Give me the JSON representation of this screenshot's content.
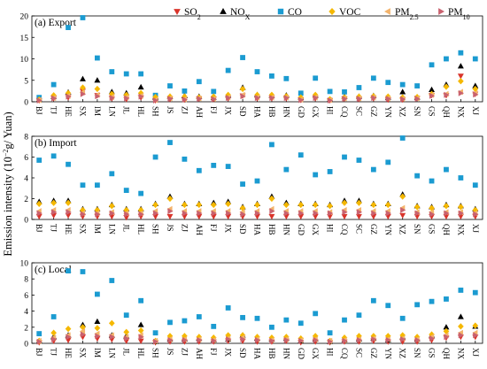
{
  "chart_data": {
    "type": "scatter",
    "ylabel": "Emission intensity (10",
    "ylabel_exp": "−2",
    "ylabel_tail": "g/ Yuan)",
    "categories": [
      "BJ",
      "TJ",
      "HE",
      "SX",
      "IM",
      "LN",
      "JL",
      "HL",
      "SH",
      "JS",
      "ZJ",
      "AH",
      "FJ",
      "JX",
      "SD",
      "HA",
      "HB",
      "HN",
      "GD",
      "GX",
      "HI",
      "CQ",
      "SC",
      "GZ",
      "YN",
      "XZ",
      "SN",
      "GS",
      "QH",
      "NX",
      "XJ"
    ],
    "series_style": [
      {
        "key": "SO2",
        "name": "SO",
        "sub": "2",
        "color": "#d9342b",
        "shape": "tri-down"
      },
      {
        "key": "NOX",
        "name": "NO",
        "sub": "X",
        "color": "#000000",
        "shape": "tri-up"
      },
      {
        "key": "CO",
        "name": "CO",
        "sub": "",
        "color": "#1b9bd1",
        "shape": "square"
      },
      {
        "key": "VOC",
        "name": "VOC",
        "sub": "",
        "color": "#f5b800",
        "shape": "diamond"
      },
      {
        "key": "PM25",
        "name": "PM",
        "sub": "2.5",
        "color": "#f3b36b",
        "shape": "tri-left"
      },
      {
        "key": "PM10",
        "name": "PM",
        "sub": "10",
        "color": "#c9626f",
        "shape": "tri-right"
      }
    ],
    "legend_position": "top-right",
    "panels": [
      {
        "title": "(a) Export",
        "ylim": [
          0,
          20
        ],
        "yticks": [
          0,
          5,
          10,
          15,
          20
        ],
        "series": {
          "SO2": [
            0.3,
            0.8,
            1.0,
            2.5,
            1.5,
            0.8,
            0.6,
            1.0,
            0.3,
            0.6,
            0.5,
            0.7,
            0.6,
            0.8,
            1.4,
            0.8,
            0.8,
            0.8,
            0.4,
            0.8,
            0.3,
            0.7,
            0.6,
            0.8,
            0.5,
            0.5,
            0.8,
            1.5,
            1.5,
            6.0,
            1.8
          ],
          "NOX": [
            0.5,
            1.2,
            2.2,
            5.3,
            5.0,
            2.3,
            2.0,
            3.4,
            1.0,
            1.2,
            1.4,
            1.2,
            1.0,
            1.5,
            3.3,
            1.6,
            1.4,
            1.5,
            1.0,
            1.5,
            0.5,
            1.2,
            1.2,
            1.4,
            1.0,
            2.3,
            1.0,
            2.8,
            4.0,
            8.3,
            3.7
          ],
          "CO": [
            1.0,
            4.0,
            17.3,
            20.2,
            10.2,
            7.0,
            6.5,
            6.5,
            1.5,
            3.7,
            2.5,
            4.7,
            2.4,
            7.3,
            10.3,
            7.0,
            6.0,
            5.4,
            2.0,
            5.5,
            2.4,
            2.3,
            3.3,
            5.5,
            4.5,
            4.0,
            3.7,
            8.6,
            10.0,
            11.4,
            10.0
          ],
          "VOC": [
            0.5,
            1.5,
            2.0,
            3.3,
            3.0,
            1.8,
            1.6,
            2.0,
            1.1,
            1.2,
            1.2,
            1.0,
            1.2,
            1.6,
            3.0,
            1.6,
            1.6,
            1.3,
            1.0,
            1.6,
            0.6,
            1.0,
            1.2,
            1.3,
            1.2,
            1.0,
            1.1,
            1.8,
            3.5,
            4.8,
            3.0
          ],
          "PM25": [
            0.4,
            0.9,
            1.4,
            2.2,
            1.6,
            1.1,
            1.0,
            1.4,
            0.4,
            0.8,
            0.6,
            0.8,
            0.7,
            1.0,
            1.6,
            1.0,
            1.0,
            1.0,
            0.5,
            1.0,
            0.4,
            0.8,
            0.8,
            1.0,
            0.8,
            0.7,
            0.8,
            1.6,
            1.8,
            2.3,
            2.0
          ],
          "PM10": [
            0.3,
            0.8,
            1.2,
            1.8,
            1.3,
            0.9,
            0.8,
            1.2,
            0.3,
            0.7,
            0.5,
            0.7,
            0.6,
            0.9,
            1.3,
            0.9,
            0.9,
            0.9,
            0.4,
            0.9,
            0.3,
            0.7,
            0.7,
            0.9,
            0.7,
            0.6,
            0.7,
            1.4,
            1.6,
            2.0,
            1.7
          ]
        }
      },
      {
        "title": "(b) Import",
        "ylim": [
          0,
          8
        ],
        "yticks": [
          0,
          2,
          4,
          6,
          8
        ],
        "series": {
          "SO2": [
            0.3,
            0.4,
            0.4,
            0.3,
            0.3,
            0.3,
            0.2,
            0.3,
            0.3,
            0.3,
            0.3,
            0.3,
            0.3,
            0.3,
            0.3,
            0.3,
            0.3,
            0.3,
            0.3,
            0.3,
            0.3,
            0.3,
            0.3,
            0.3,
            0.3,
            0.4,
            0.3,
            0.3,
            0.3,
            0.3,
            0.3
          ],
          "NOX": [
            1.7,
            1.8,
            1.8,
            1.0,
            1.0,
            1.4,
            1.0,
            1.0,
            1.5,
            2.2,
            1.5,
            1.5,
            1.6,
            1.7,
            1.2,
            1.5,
            2.2,
            1.6,
            1.5,
            1.5,
            1.4,
            1.8,
            1.8,
            1.5,
            1.5,
            2.4,
            1.3,
            1.2,
            1.4,
            1.3,
            1.0
          ],
          "CO": [
            5.7,
            6.1,
            5.3,
            3.3,
            3.3,
            4.4,
            2.8,
            2.5,
            6.0,
            7.4,
            5.8,
            4.7,
            5.2,
            5.1,
            3.4,
            3.7,
            7.2,
            4.8,
            6.2,
            4.3,
            4.6,
            6.0,
            5.7,
            4.8,
            5.5,
            8.0,
            4.2,
            3.7,
            4.8,
            4.0,
            3.3
          ],
          "VOC": [
            1.5,
            1.6,
            1.6,
            0.9,
            0.9,
            1.3,
            0.9,
            0.9,
            1.4,
            2.0,
            1.4,
            1.4,
            1.4,
            1.5,
            1.1,
            1.4,
            2.0,
            1.4,
            1.4,
            1.4,
            1.3,
            1.6,
            1.6,
            1.4,
            1.4,
            2.2,
            1.2,
            1.1,
            1.3,
            1.2,
            0.9
          ],
          "PM25": [
            0.8,
            0.9,
            0.9,
            0.6,
            0.6,
            0.7,
            0.6,
            0.6,
            0.8,
            1.0,
            0.8,
            0.8,
            0.8,
            0.8,
            0.7,
            0.8,
            1.0,
            0.8,
            0.8,
            0.8,
            0.7,
            0.9,
            0.9,
            0.8,
            0.8,
            1.1,
            0.7,
            0.7,
            0.7,
            0.7,
            0.6
          ],
          "PM10": [
            0.6,
            0.7,
            0.7,
            0.5,
            0.5,
            0.6,
            0.5,
            0.5,
            0.6,
            0.8,
            0.6,
            0.6,
            0.6,
            0.6,
            0.5,
            0.6,
            0.8,
            0.6,
            0.6,
            0.6,
            0.6,
            0.7,
            0.7,
            0.6,
            0.6,
            0.9,
            0.6,
            0.5,
            0.6,
            0.6,
            0.5
          ]
        }
      },
      {
        "title": "(c) Local",
        "ylim": [
          0,
          10
        ],
        "yticks": [
          0,
          2,
          4,
          6,
          8,
          10
        ],
        "series": {
          "SO2": [
            0.1,
            0.3,
            0.4,
            0.8,
            0.6,
            0.5,
            0.3,
            0.3,
            0.1,
            0.2,
            0.2,
            0.2,
            0.2,
            0.3,
            0.3,
            0.2,
            0.2,
            0.3,
            0.1,
            0.2,
            0.1,
            0.2,
            0.2,
            0.3,
            0.2,
            0.2,
            0.2,
            0.4,
            0.7,
            0.8,
            0.8
          ],
          "NOX": [
            0.3,
            0.8,
            1.0,
            2.3,
            2.7,
            1.0,
            0.9,
            2.3,
            0.2,
            0.5,
            0.5,
            0.6,
            0.4,
            0.5,
            1.0,
            0.6,
            0.5,
            0.6,
            0.3,
            0.5,
            0.2,
            0.4,
            0.5,
            0.6,
            0.4,
            0.8,
            0.5,
            1.0,
            2.0,
            3.3,
            2.1
          ],
          "CO": [
            1.2,
            3.3,
            9.0,
            8.9,
            6.1,
            7.8,
            3.5,
            5.3,
            1.3,
            2.6,
            2.8,
            3.3,
            2.1,
            4.4,
            3.2,
            3.1,
            2.0,
            2.9,
            2.5,
            3.7,
            1.3,
            2.9,
            3.5,
            5.3,
            4.7,
            3.1,
            4.8,
            5.2,
            5.5,
            6.6,
            6.3
          ],
          "VOC": [
            0.3,
            1.3,
            1.8,
            2.0,
            1.9,
            2.5,
            1.4,
            1.6,
            0.3,
            0.9,
            0.9,
            0.8,
            0.7,
            1.0,
            1.0,
            0.8,
            0.7,
            0.8,
            0.6,
            0.9,
            0.3,
            0.7,
            0.9,
            0.9,
            0.9,
            1.0,
            0.8,
            1.1,
            1.5,
            2.1,
            2.2
          ],
          "PM25": [
            0.3,
            0.7,
            1.0,
            1.5,
            1.2,
            1.0,
            0.8,
            1.0,
            0.3,
            0.5,
            0.5,
            0.5,
            0.4,
            0.6,
            0.7,
            0.5,
            0.4,
            0.5,
            0.4,
            0.5,
            0.3,
            0.4,
            0.5,
            0.6,
            0.5,
            0.6,
            0.5,
            0.8,
            1.0,
            1.3,
            1.3
          ],
          "PM10": [
            0.2,
            0.5,
            0.8,
            1.1,
            0.9,
            0.8,
            0.6,
            0.8,
            0.2,
            0.4,
            0.4,
            0.4,
            0.3,
            0.5,
            0.5,
            0.4,
            0.3,
            0.4,
            0.3,
            0.4,
            0.2,
            0.3,
            0.4,
            0.5,
            0.4,
            0.5,
            0.4,
            0.6,
            0.8,
            1.0,
            1.0
          ]
        }
      }
    ]
  }
}
